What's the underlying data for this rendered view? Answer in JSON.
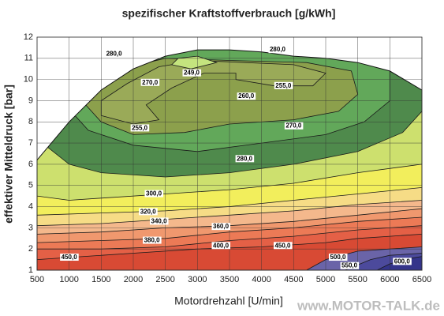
{
  "chart_data": {
    "type": "contour",
    "title": "spezifischer Kraftstoffverbrauch [g/kWh]",
    "x_label": "Motordrehzahl [U/min]",
    "y_label": "effektiver Mitteldruck [bar]",
    "watermark": "www.MOTOR-TALK.de",
    "xlim": [
      500,
      6500
    ],
    "xticks": [
      500,
      1000,
      1500,
      2000,
      2500,
      3000,
      3500,
      4000,
      4500,
      5000,
      5500,
      6000,
      6500
    ],
    "ylim": [
      1,
      12
    ],
    "yticks": [
      1,
      2,
      3,
      4,
      5,
      6,
      7,
      8,
      9,
      10,
      11,
      12
    ],
    "grid": true,
    "base_color": "#d84a34",
    "envelope": [
      [
        500,
        1
      ],
      [
        500,
        6.2
      ],
      [
        1000,
        8.0
      ],
      [
        1500,
        9.5
      ],
      [
        2000,
        10.5
      ],
      [
        2500,
        11.1
      ],
      [
        3000,
        11.4
      ],
      [
        3500,
        11.4
      ],
      [
        4000,
        11.3
      ],
      [
        4500,
        11.1
      ],
      [
        5000,
        11.0
      ],
      [
        5500,
        10.8
      ],
      [
        6000,
        10.4
      ],
      [
        6500,
        9.5
      ],
      [
        6500,
        1
      ]
    ],
    "levels": [
      {
        "value": 500,
        "label": "500,0",
        "color": "#6a64a8",
        "region": [
          [
            4700,
            1
          ],
          [
            5000,
            1.5
          ],
          [
            5500,
            1.9
          ],
          [
            6000,
            2.0
          ],
          [
            6500,
            2.1
          ],
          [
            6500,
            1
          ]
        ],
        "labels": [
          [
            5190,
            1.6
          ]
        ]
      },
      {
        "value": 550,
        "label": "550,0",
        "color": "#4c4a9c",
        "region": [
          [
            5300,
            1
          ],
          [
            5700,
            1.5
          ],
          [
            6000,
            1.7
          ],
          [
            6500,
            1.8
          ],
          [
            6500,
            1
          ]
        ],
        "labels": [
          [
            5370,
            1.2
          ]
        ]
      },
      {
        "value": 600,
        "label": "600,0",
        "color": "#34348a",
        "region": [
          [
            5800,
            1
          ],
          [
            6000,
            1.3
          ],
          [
            6300,
            1.55
          ],
          [
            6500,
            1.65
          ],
          [
            6500,
            1
          ]
        ],
        "labels": [
          [
            6190,
            1.4
          ]
        ]
      },
      {
        "value": 450,
        "label": "450,0",
        "color": "#e46046",
        "region": [
          [
            500,
            1.5
          ],
          [
            1000,
            1.6
          ],
          [
            2000,
            1.8
          ],
          [
            3000,
            2.0
          ],
          [
            4000,
            2.1
          ],
          [
            5000,
            2.3
          ],
          [
            5500,
            2.5
          ],
          [
            6000,
            2.6
          ],
          [
            6500,
            2.7
          ],
          [
            6500,
            13
          ],
          [
            500,
            13
          ]
        ],
        "labels": [
          [
            1000,
            1.6
          ],
          [
            4330,
            2.15
          ]
        ]
      },
      {
        "value": 400,
        "label": "400,0",
        "color": "#ec7a56",
        "region": [
          [
            500,
            2.0
          ],
          [
            1500,
            2.0
          ],
          [
            2500,
            2.1
          ],
          [
            3500,
            2.4
          ],
          [
            4500,
            2.6
          ],
          [
            5500,
            2.9
          ],
          [
            6500,
            3.1
          ],
          [
            6500,
            13
          ],
          [
            500,
            13
          ]
        ],
        "labels": [
          [
            3365,
            2.15
          ]
        ]
      },
      {
        "value": 380,
        "label": "380,0",
        "color": "#f0986e",
        "region": [
          [
            500,
            2.3
          ],
          [
            1500,
            2.4
          ],
          [
            2500,
            2.5
          ],
          [
            3500,
            2.8
          ],
          [
            4500,
            3.0
          ],
          [
            5500,
            3.3
          ],
          [
            6500,
            3.5
          ],
          [
            6500,
            13
          ],
          [
            500,
            13
          ]
        ],
        "labels": [
          [
            2290,
            2.4
          ]
        ]
      },
      {
        "value": 360,
        "label": "360,0",
        "color": "#f4b88c",
        "region": [
          [
            500,
            2.7
          ],
          [
            1500,
            2.8
          ],
          [
            2500,
            3.0
          ],
          [
            3500,
            3.1
          ],
          [
            4500,
            3.3
          ],
          [
            5500,
            3.6
          ],
          [
            6500,
            3.9
          ],
          [
            6500,
            13
          ],
          [
            500,
            13
          ]
        ],
        "labels": [
          [
            3365,
            3.05
          ]
        ]
      },
      {
        "value": 340,
        "label": "340,0",
        "color": "#f6dc86",
        "region": [
          [
            500,
            3.1
          ],
          [
            1500,
            3.2
          ],
          [
            2500,
            3.4
          ],
          [
            3500,
            3.6
          ],
          [
            4500,
            3.8
          ],
          [
            5500,
            4.1
          ],
          [
            6500,
            4.3
          ],
          [
            6500,
            13
          ],
          [
            500,
            13
          ]
        ],
        "labels": [
          [
            2400,
            3.3
          ]
        ]
      },
      {
        "value": 320,
        "label": "320,0",
        "color": "#f2ee5c",
        "region": [
          [
            500,
            3.6
          ],
          [
            1500,
            3.7
          ],
          [
            2500,
            3.8
          ],
          [
            3500,
            4.0
          ],
          [
            4500,
            4.3
          ],
          [
            5500,
            4.6
          ],
          [
            6500,
            4.9
          ],
          [
            6500,
            13
          ],
          [
            500,
            13
          ]
        ],
        "labels": [
          [
            2230,
            3.75
          ]
        ]
      },
      {
        "value": 300,
        "label": "300,0",
        "color": "#cde06e",
        "region": [
          [
            500,
            4.5
          ],
          [
            1000,
            4.3
          ],
          [
            1500,
            4.4
          ],
          [
            2500,
            4.6
          ],
          [
            3500,
            4.8
          ],
          [
            4500,
            5.1
          ],
          [
            5500,
            5.6
          ],
          [
            6500,
            6.0
          ],
          [
            6500,
            13
          ],
          [
            500,
            13
          ]
        ],
        "labels": [
          [
            2320,
            4.6
          ]
        ]
      },
      {
        "value": 280,
        "label": "280,0",
        "color": "#4f8a4c",
        "region": [
          [
            500,
            7.2
          ],
          [
            1000,
            6.0
          ],
          [
            1500,
            5.6
          ],
          [
            2500,
            5.4
          ],
          [
            3500,
            5.6
          ],
          [
            4500,
            6.0
          ],
          [
            5500,
            6.6
          ],
          [
            6200,
            7.5
          ],
          [
            6500,
            8.5
          ],
          [
            6500,
            13
          ],
          [
            500,
            13
          ]
        ],
        "labels": [
          [
            3735,
            6.25
          ],
          [
            4250,
            11.4
          ],
          [
            1700,
            11.2
          ]
        ]
      },
      {
        "value": 270,
        "label": "270,0",
        "color": "#62a85a",
        "region": [
          [
            1000,
            8.6
          ],
          [
            1300,
            7.6
          ],
          [
            2000,
            6.9
          ],
          [
            3000,
            6.6
          ],
          [
            4000,
            7.0
          ],
          [
            5000,
            7.4
          ],
          [
            5600,
            8.0
          ],
          [
            6000,
            9.0
          ],
          [
            6000,
            10.5
          ],
          [
            5500,
            11.2
          ],
          [
            4000,
            11.6
          ],
          [
            2500,
            11.5
          ],
          [
            1500,
            10.2
          ]
        ],
        "labels": [
          [
            4500,
            7.8
          ],
          [
            2260,
            9.85
          ]
        ]
      },
      {
        "value": 260,
        "label": "260,0",
        "color": "#8ca04c",
        "region": [
          [
            1200,
            9.0
          ],
          [
            1500,
            8.0
          ],
          [
            2000,
            7.4
          ],
          [
            2800,
            7.5
          ],
          [
            3500,
            7.9
          ],
          [
            4500,
            8.1
          ],
          [
            5200,
            8.5
          ],
          [
            5500,
            9.3
          ],
          [
            5400,
            10.4
          ],
          [
            4700,
            10.8
          ],
          [
            3500,
            10.9
          ],
          [
            2500,
            11.0
          ],
          [
            1800,
            10.5
          ],
          [
            1300,
            9.8
          ]
        ],
        "labels": [
          [
            3760,
            9.2
          ]
        ]
      },
      {
        "value": 255,
        "label": "255,0",
        "color": "#9aaa58",
        "region": [
          [
            1500,
            8.3
          ],
          [
            2000,
            7.9
          ],
          [
            2400,
            8.1
          ],
          [
            2200,
            8.8
          ],
          [
            2600,
            9.6
          ],
          [
            3100,
            10.3
          ],
          [
            3600,
            10.3
          ],
          [
            3600,
            10.0
          ],
          [
            4200,
            9.7
          ],
          [
            4800,
            9.7
          ],
          [
            5000,
            10.3
          ],
          [
            4500,
            10.7
          ],
          [
            3000,
            10.9
          ],
          [
            2400,
            10.6
          ],
          [
            1900,
            9.8
          ],
          [
            1500,
            9.0
          ]
        ],
        "labels": [
          [
            2100,
            7.7
          ],
          [
            4340,
            9.7
          ]
        ]
      },
      {
        "value": 249,
        "label": "249,0",
        "color": "#c4e47e",
        "region": [
          [
            2600,
            10.7
          ],
          [
            2900,
            10.5
          ],
          [
            3300,
            10.8
          ],
          [
            3000,
            11.1
          ],
          [
            2700,
            11.0
          ]
        ],
        "labels": [
          [
            2910,
            10.3
          ]
        ]
      }
    ]
  }
}
